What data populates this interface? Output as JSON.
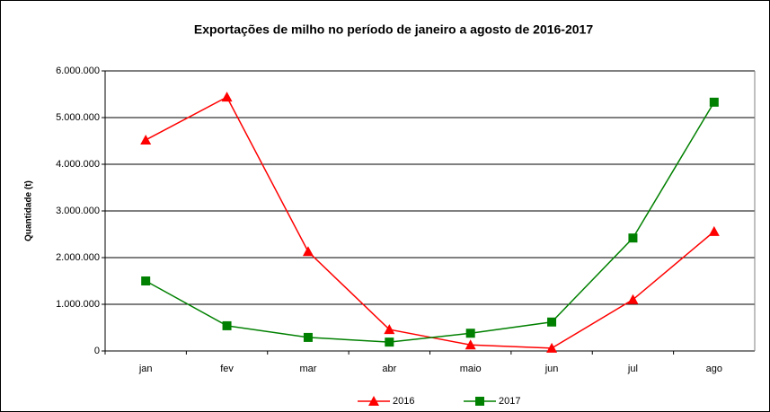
{
  "chart_data": {
    "type": "line",
    "title": "Exportações de milho no período de  janeiro a agosto de 2016-2017",
    "y_label": "Quantidade (t)",
    "categories": [
      "jan",
      "fev",
      "mar",
      "abr",
      "maio",
      "jun",
      "jul",
      "ago"
    ],
    "series": [
      {
        "name": "2016",
        "color": "#ff0000",
        "marker": "triangle",
        "values": [
          4520000,
          5440000,
          2130000,
          460000,
          130000,
          60000,
          1100000,
          2560000
        ]
      },
      {
        "name": "2017",
        "color": "#008000",
        "marker": "square",
        "values": [
          1500000,
          540000,
          290000,
          190000,
          380000,
          620000,
          2420000,
          5330000
        ]
      }
    ],
    "ylim": [
      0,
      6000000
    ],
    "yticks": [
      0,
      {
        "value": 1000000,
        "label": "1.000.000"
      },
      {
        "value": 2000000,
        "label": "2.000.000"
      },
      {
        "value": 3000000,
        "label": "3.000.000"
      },
      {
        "value": 4000000,
        "label": "4.000.000"
      },
      {
        "value": 5000000,
        "label": "5.000.000"
      },
      {
        "value": 6000000,
        "label": "6.000.000"
      }
    ],
    "grid": true,
    "legend": "bottom"
  }
}
